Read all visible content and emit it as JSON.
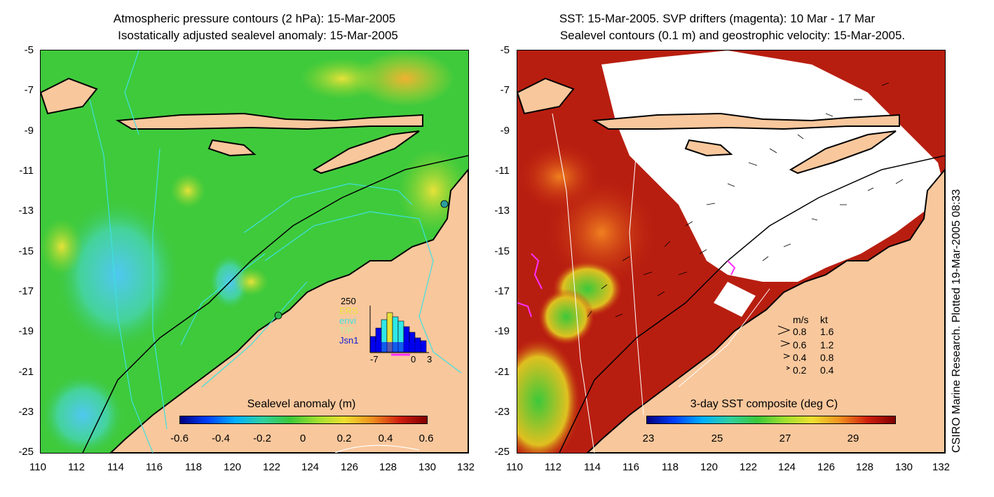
{
  "left_map": {
    "title_line1": "Atmospheric pressure contours (2 hPa): 15-Mar-2005",
    "title_line2": "Isostatically adjusted sealevel anomaly: 15-Mar-2005",
    "colorbar": {
      "title": "Sealevel anomaly (m)",
      "ticks": [
        "-0.6",
        "-0.4",
        "-0.2",
        "0",
        "0.2",
        "0.4",
        "0.6"
      ]
    },
    "inset": {
      "count_label": "250",
      "legend": [
        "ERS",
        "envi",
        "T/P",
        "Jsn1"
      ],
      "x_ticks": [
        "-7",
        "0",
        "3"
      ]
    }
  },
  "right_map": {
    "title_line1": "SST: 15-Mar-2005. SVP drifters (magenta): 10 Mar - 17 Mar",
    "title_line2": "Sealevel contours (0.1 m) and geostrophic velocity: 15-Mar-2005.",
    "colorbar": {
      "title": "3-day SST composite (deg C)",
      "ticks": [
        "23",
        "25",
        "27",
        "29"
      ]
    },
    "velocity_legend": {
      "header_ms": "m/s",
      "header_kt": "kt",
      "rows": [
        {
          "ms": "0.8",
          "kt": "1.6"
        },
        {
          "ms": "0.6",
          "kt": "1.2"
        },
        {
          "ms": "0.4",
          "kt": "0.8"
        },
        {
          "ms": "0.2",
          "kt": "0.4"
        }
      ]
    }
  },
  "axes": {
    "y_ticks": [
      "-5",
      "-7",
      "-9",
      "-11",
      "-13",
      "-15",
      "-17",
      "-19",
      "-21",
      "-23",
      "-25"
    ],
    "x_ticks": [
      "110",
      "112",
      "114",
      "116",
      "118",
      "120",
      "122",
      "124",
      "126",
      "128",
      "130",
      "132"
    ]
  },
  "credit": "CSIRO Marine Research. Plotted 19-Mar-2005 08:33",
  "colors": {
    "land": "#f9c79c",
    "ocean_green": "#3cc83a",
    "sst_hot": "#b81e10",
    "contour_cyan": "#3ee0e0"
  }
}
